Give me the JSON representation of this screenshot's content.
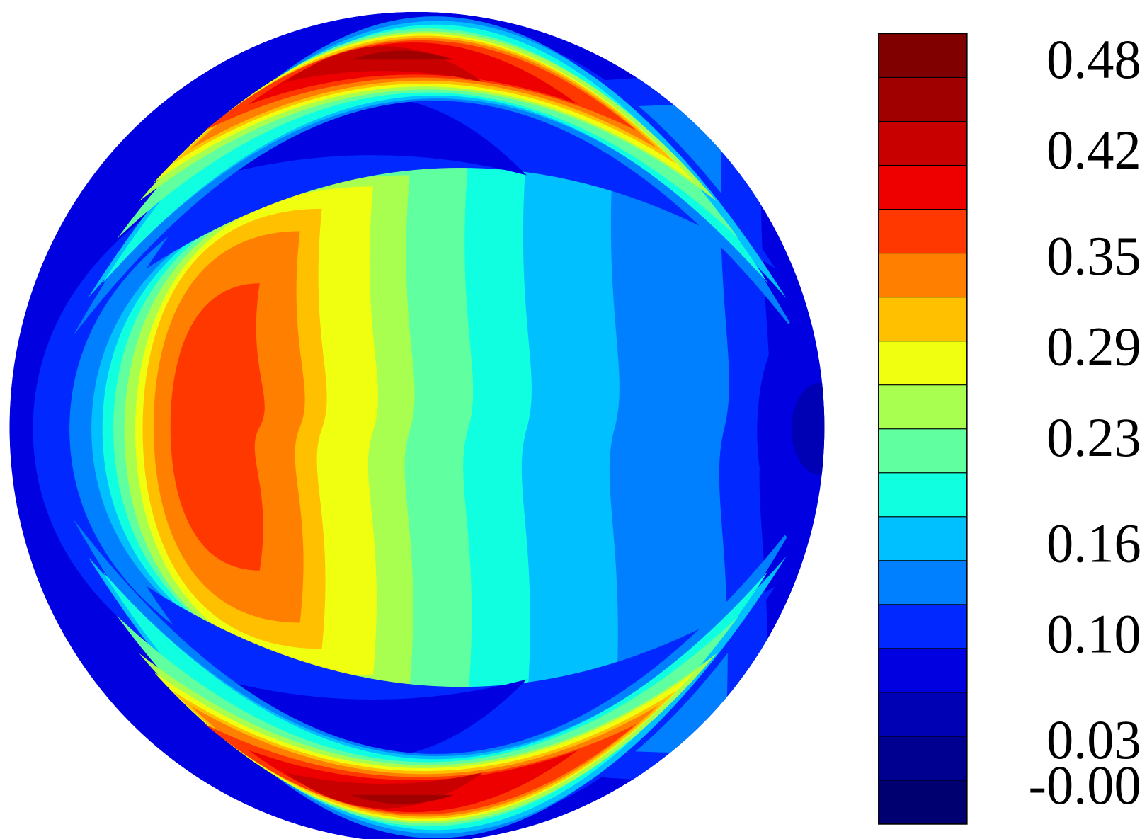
{
  "chart_data": {
    "type": "contour",
    "colorbar": {
      "colors": [
        "#000070",
        "#000090",
        "#0000b4",
        "#0000e0",
        "#0028ff",
        "#0080ff",
        "#00c0ff",
        "#10ffe0",
        "#60ffa0",
        "#a8ff50",
        "#f0ff10",
        "#ffc000",
        "#ff8000",
        "#ff3800",
        "#ee0000",
        "#c80000",
        "#a00000",
        "#800000"
      ],
      "clim": [
        -0.022,
        0.501
      ],
      "ticks": [
        {
          "value": 0,
          "label": "-0.00"
        },
        0.03,
        {
          "value": 0.1,
          "label": "0.10"
        },
        0.16,
        0.23,
        0.29,
        0.35,
        0.42,
        0.48
      ]
    }
  }
}
